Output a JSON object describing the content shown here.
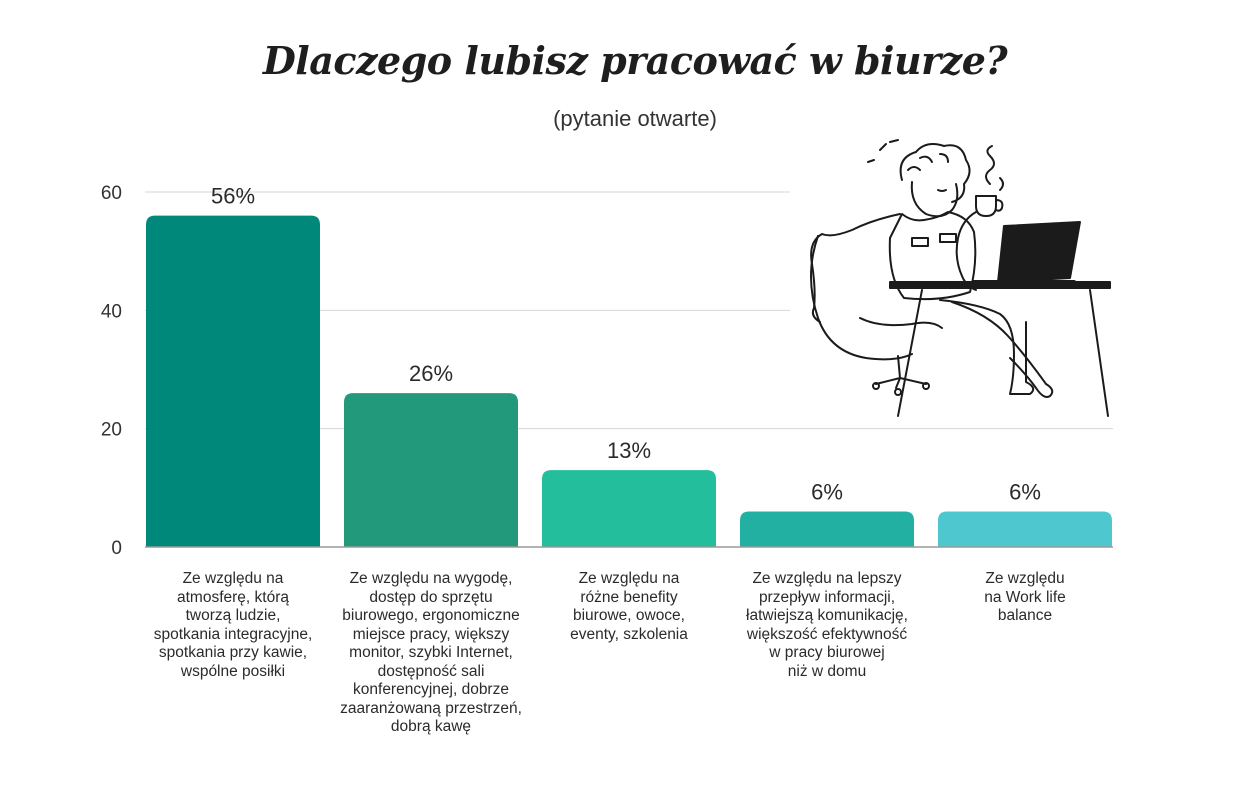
{
  "title": "Dlaczego lubisz pracować w biurze?",
  "subtitle": "(pytanie otwarte)",
  "chart_data": {
    "type": "bar",
    "title": "Dlaczego lubisz pracować w biurze?",
    "subtitle": "(pytanie otwarte)",
    "xlabel": "",
    "ylabel": "",
    "ylim": [
      0,
      60
    ],
    "yticks": [
      0,
      20,
      40,
      60
    ],
    "grid": true,
    "categories": [
      "Ze względu na\natmosferę, którą\ntworzą ludzie,\nspotkania integracyjne,\nspotkania przy kawie,\nwspólne posiłki",
      "Ze względu na wygodę,\ndostęp do sprzętu\nbiurowego, ergonomiczne\nmiejsce pracy, większy\nmonitor, szybki Internet,\ndostępność sali\nkonferencyjnej, dobrze\nzaaranżowaną przestrzeń,\ndobrą kawę",
      "Ze względu na\nróżne benefity\nbiurowe, owoce,\neventy, szkolenia",
      "Ze względu na lepszy\nprzepływ informacji,\nłatwiejszą komunikację,\nwiększość efektywność\nw pracy biurowej\nniż w domu",
      "Ze względu\nna Work life\nbalance"
    ],
    "values": [
      56,
      26,
      13,
      6,
      6
    ],
    "data_labels": [
      "56%",
      "26%",
      "13%",
      "6%",
      "6%"
    ],
    "colors": [
      "#00897b",
      "#22997a",
      "#23bf9c",
      "#22b0a3",
      "#4fc7cf"
    ]
  },
  "illustration": {
    "icon": "person-at-laptop-with-coffee-illustration"
  }
}
